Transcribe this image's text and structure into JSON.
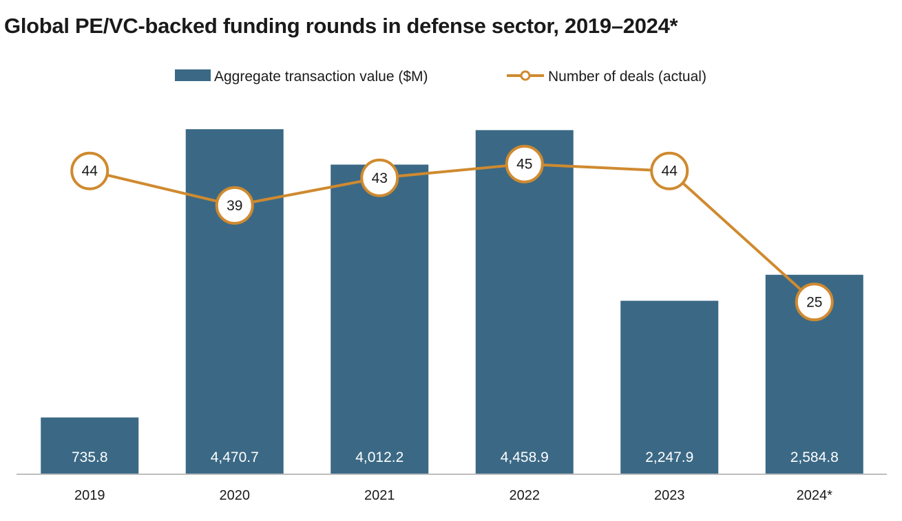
{
  "colors": {
    "bar": "#3b6985",
    "line": "#cf8a2f",
    "axis": "#bdbdbd"
  },
  "chart_data": {
    "type": "bar",
    "title": "Global PE/VC-backed funding rounds in defense sector, 2019–2024*",
    "categories": [
      "2019",
      "2020",
      "2021",
      "2022",
      "2023",
      "2024*"
    ],
    "series": [
      {
        "name": "Aggregate transaction value ($M)",
        "type": "bar",
        "values": [
          735.8,
          4470.7,
          4012.2,
          4458.9,
          2247.9,
          2584.8
        ],
        "labels": [
          "735.8",
          "4,470.7",
          "4,012.2",
          "4,458.9",
          "2,247.9",
          "2,584.8"
        ]
      },
      {
        "name": "Number of deals (actual)",
        "type": "line",
        "values": [
          44,
          39,
          43,
          45,
          44,
          25
        ],
        "labels": [
          "44",
          "39",
          "43",
          "45",
          "44",
          "25"
        ]
      }
    ],
    "ylim_bar": [
      0,
      4470.7
    ],
    "ylim_line": [
      0,
      68.8
    ],
    "legend_position": "top-center"
  }
}
